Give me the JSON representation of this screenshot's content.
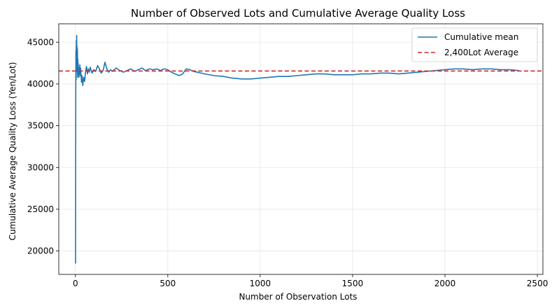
{
  "chart_data": {
    "type": "line",
    "title": "Number of Observed Lots and Cumulative Average Quality Loss",
    "xlabel": "Number of Observation Lots",
    "ylabel": "Cumulative Average Quality Loss (Yen/Lot)",
    "xlim": [
      -90,
      2530
    ],
    "ylim": [
      17200,
      47200
    ],
    "x_ticks": [
      0,
      500,
      1000,
      1500,
      2000,
      2500
    ],
    "x_tick_labels": [
      "0",
      "500",
      "1000",
      "1500",
      "2000",
      "2500"
    ],
    "y_ticks": [
      20000,
      25000,
      30000,
      35000,
      40000,
      45000
    ],
    "y_tick_labels": [
      "20000",
      "25000",
      "30000",
      "35000",
      "40000",
      "45000"
    ],
    "grid": true,
    "legend_position": "top-right",
    "colors": {
      "series": "#1f77b4",
      "average": "#d62728"
    },
    "series": [
      {
        "name": "Cumulative mean",
        "style": "solid",
        "x": [
          1,
          2,
          3,
          4,
          5,
          6,
          7,
          8,
          9,
          10,
          11,
          12,
          13,
          14,
          15,
          16,
          17,
          18,
          19,
          20,
          22,
          24,
          26,
          28,
          30,
          33,
          36,
          40,
          45,
          50,
          55,
          60,
          65,
          70,
          75,
          80,
          90,
          100,
          110,
          120,
          130,
          140,
          150,
          160,
          170,
          180,
          190,
          200,
          220,
          240,
          260,
          280,
          300,
          320,
          340,
          360,
          380,
          400,
          420,
          440,
          460,
          480,
          500,
          520,
          540,
          560,
          580,
          600,
          620,
          640,
          660,
          680,
          700,
          750,
          800,
          850,
          900,
          950,
          1000,
          1050,
          1100,
          1150,
          1200,
          1250,
          1300,
          1350,
          1400,
          1450,
          1500,
          1550,
          1600,
          1650,
          1700,
          1750,
          1800,
          1850,
          1900,
          1950,
          2000,
          2050,
          2100,
          2150,
          2200,
          2250,
          2300,
          2350,
          2400
        ],
        "values": [
          18500,
          39500,
          44000,
          40500,
          45200,
          43000,
          45800,
          41500,
          44500,
          42800,
          44200,
          40800,
          43000,
          41800,
          42500,
          41200,
          42000,
          41500,
          40800,
          41800,
          41200,
          42300,
          41000,
          41900,
          41200,
          40200,
          41000,
          39800,
          40800,
          40300,
          41500,
          42100,
          41200,
          41800,
          41400,
          42000,
          41300,
          41700,
          41500,
          42200,
          41800,
          41300,
          41600,
          42600,
          41800,
          41400,
          41700,
          41500,
          41900,
          41600,
          41400,
          41600,
          41800,
          41500,
          41700,
          41900,
          41600,
          41800,
          41700,
          41800,
          41600,
          41800,
          41700,
          41400,
          41200,
          41000,
          41200,
          41800,
          41700,
          41500,
          41400,
          41300,
          41200,
          41000,
          40900,
          40700,
          40600,
          40600,
          40700,
          40800,
          40900,
          40900,
          41000,
          41100,
          41200,
          41200,
          41100,
          41100,
          41100,
          41200,
          41200,
          41300,
          41300,
          41200,
          41300,
          41400,
          41500,
          41600,
          41700,
          41800,
          41800,
          41700,
          41800,
          41800,
          41700,
          41700,
          41600
        ]
      },
      {
        "name": "2,400Lot Average",
        "style": "dashed",
        "x": [
          -90,
          2530
        ],
        "values": [
          41550,
          41550
        ]
      }
    ]
  }
}
